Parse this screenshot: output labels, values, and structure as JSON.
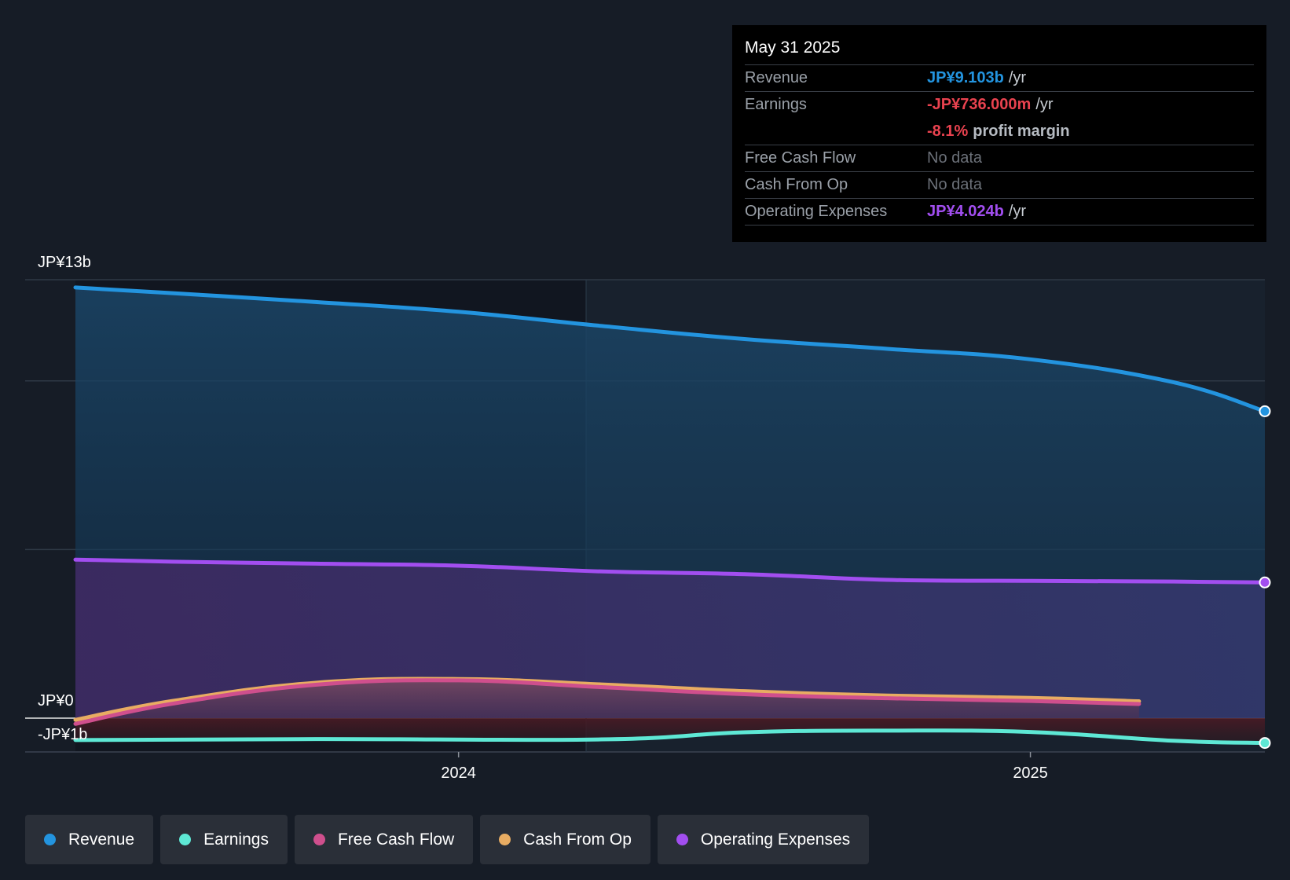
{
  "tooltip": {
    "date": "May 31 2025",
    "rows": [
      {
        "label": "Revenue",
        "value": "JP¥9.103b",
        "unit": "/yr",
        "color": "#2394df"
      },
      {
        "label": "Earnings",
        "value": "-JP¥736.000m",
        "unit": "/yr",
        "color": "#e9424f"
      },
      {
        "label": "",
        "value": "-8.1%",
        "unit": "profit margin",
        "color": "#e9424f"
      },
      {
        "label": "Free Cash Flow",
        "value": "No data"
      },
      {
        "label": "Cash From Op",
        "value": "No data"
      },
      {
        "label": "Operating Expenses",
        "value": "JP¥4.024b",
        "unit": "/yr",
        "color": "#a24ef0"
      }
    ]
  },
  "legend": [
    {
      "label": "Revenue",
      "color": "#2394df"
    },
    {
      "label": "Earnings",
      "color": "#5ee8d5"
    },
    {
      "label": "Free Cash Flow",
      "color": "#cf4f8d"
    },
    {
      "label": "Cash From Op",
      "color": "#e8ac62"
    },
    {
      "label": "Operating Expenses",
      "color": "#a24ef0"
    }
  ],
  "chart_data": {
    "type": "area",
    "y_tick_labels": [
      "JP¥13b",
      "JP¥0",
      "-JP¥1b"
    ],
    "y_ticks": [
      13,
      0,
      -1
    ],
    "ylim": [
      -1,
      13
    ],
    "x_tick_labels": [
      "2024",
      "2025"
    ],
    "x_ticks": [
      2024.0,
      2025.0
    ],
    "xlim": [
      2023.33,
      2025.41
    ],
    "grid": true,
    "series": [
      {
        "name": "Revenue",
        "color": "#2394df",
        "x": [
          2023.33,
          2023.5,
          2023.75,
          2024.0,
          2024.25,
          2024.5,
          2024.75,
          2025.0,
          2025.25,
          2025.41
        ],
        "y": [
          12.77,
          12.6,
          12.34,
          12.05,
          11.63,
          11.24,
          10.95,
          10.64,
          9.96,
          9.1
        ]
      },
      {
        "name": "Operating Expenses",
        "color": "#a24ef0",
        "x": [
          2023.33,
          2023.5,
          2023.75,
          2024.0,
          2024.25,
          2024.5,
          2024.75,
          2025.0,
          2025.25,
          2025.41
        ],
        "y": [
          4.7,
          4.64,
          4.58,
          4.52,
          4.35,
          4.27,
          4.1,
          4.07,
          4.05,
          4.024
        ]
      },
      {
        "name": "Cash From Op",
        "color": "#e8ac62",
        "x": [
          2023.33,
          2023.5,
          2023.75,
          2024.0,
          2024.25,
          2024.5,
          2024.75,
          2025.0,
          2025.19
        ],
        "y": [
          -0.05,
          0.51,
          1.05,
          1.16,
          1.0,
          0.8,
          0.67,
          0.6,
          0.5
        ]
      },
      {
        "name": "Free Cash Flow",
        "color": "#cf4f8d",
        "x": [
          2023.33,
          2023.5,
          2023.75,
          2024.0,
          2024.25,
          2024.5,
          2024.75,
          2025.0,
          2025.19
        ],
        "y": [
          -0.17,
          0.43,
          0.99,
          1.12,
          0.92,
          0.71,
          0.59,
          0.51,
          0.42
        ]
      },
      {
        "name": "Earnings",
        "color": "#5ee8d5",
        "x": [
          2023.33,
          2023.75,
          2024.25,
          2024.5,
          2024.75,
          2025.0,
          2025.25,
          2025.41
        ],
        "y": [
          -0.65,
          -0.62,
          -0.63,
          -0.42,
          -0.37,
          -0.41,
          -0.67,
          -0.736
        ]
      }
    ]
  }
}
